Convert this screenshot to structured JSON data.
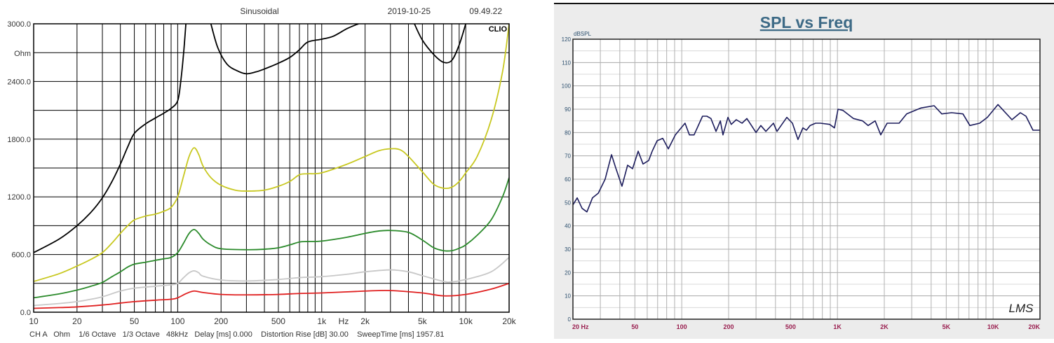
{
  "chart_data": [
    {
      "type": "line",
      "header": {
        "mode": "Sinusoidal",
        "date": "2019-10-25",
        "time": "09.49.22"
      },
      "logo": "CLIO",
      "ylabel": "Ohm",
      "xlabel": "Hz",
      "xscale": "log",
      "xlim": [
        10,
        20000
      ],
      "ylim": [
        0,
        3000
      ],
      "grid": true,
      "ytick_labels": [
        "0.0",
        "600.0",
        "1200.0",
        "1800.0",
        "2400.0",
        "3000.0"
      ],
      "ytick_values": [
        0,
        600,
        1200,
        1800,
        2400,
        3000
      ],
      "xtick_labels": [
        "10",
        "20",
        "50",
        "100",
        "200",
        "500",
        "1k",
        "2k",
        "5k",
        "10k",
        "20k"
      ],
      "xtick_values": [
        10,
        20,
        50,
        100,
        200,
        500,
        1000,
        2000,
        5000,
        10000,
        20000
      ],
      "footer": "CH A   Ohm    1/6 Octave   1/3 Octave   48kHz   Delay [ms] 0.000    Distortion Rise [dB] 30.00    SweepTime [ms] 1957.81",
      "series": [
        {
          "color": "#000000",
          "segments": [
            [
              [
                10,
                620
              ],
              [
                15,
                760
              ],
              [
                20,
                900
              ],
              [
                25,
                1040
              ],
              [
                30,
                1190
              ],
              [
                35,
                1360
              ],
              [
                40,
                1540
              ],
              [
                45,
                1720
              ],
              [
                50,
                1860
              ],
              [
                60,
                1960
              ],
              [
                70,
                2020
              ],
              [
                80,
                2070
              ],
              [
                90,
                2120
              ],
              [
                100,
                2200
              ],
              [
                105,
                2400
              ],
              [
                110,
                2700
              ],
              [
                114,
                3000
              ]
            ],
            [
              [
                170,
                3000
              ],
              [
                190,
                2750
              ],
              [
                220,
                2580
              ],
              [
                260,
                2510
              ],
              [
                300,
                2480
              ],
              [
                350,
                2500
              ],
              [
                400,
                2530
              ],
              [
                500,
                2590
              ],
              [
                600,
                2650
              ],
              [
                700,
                2730
              ],
              [
                800,
                2810
              ],
              [
                1000,
                2840
              ],
              [
                1200,
                2870
              ],
              [
                1500,
                2950
              ],
              [
                1800,
                3000
              ]
            ],
            [
              [
                4400,
                3000
              ],
              [
                5000,
                2830
              ],
              [
                6000,
                2680
              ],
              [
                7000,
                2600
              ],
              [
                8000,
                2620
              ],
              [
                9000,
                2780
              ],
              [
                10000,
                3000
              ]
            ]
          ]
        },
        {
          "color": "#c8c820",
          "segments": [
            [
              [
                10,
                320
              ],
              [
                15,
                400
              ],
              [
                20,
                480
              ],
              [
                25,
                550
              ],
              [
                30,
                620
              ],
              [
                35,
                720
              ],
              [
                40,
                820
              ],
              [
                45,
                900
              ],
              [
                50,
                960
              ],
              [
                60,
                1000
              ],
              [
                70,
                1020
              ],
              [
                80,
                1050
              ],
              [
                90,
                1090
              ],
              [
                100,
                1200
              ],
              [
                110,
                1420
              ],
              [
                120,
                1620
              ],
              [
                130,
                1710
              ],
              [
                140,
                1640
              ],
              [
                150,
                1520
              ],
              [
                170,
                1400
              ],
              [
                200,
                1320
              ],
              [
                250,
                1270
              ],
              [
                300,
                1260
              ],
              [
                400,
                1270
              ],
              [
                500,
                1310
              ],
              [
                600,
                1360
              ],
              [
                700,
                1430
              ],
              [
                800,
                1440
              ],
              [
                1000,
                1450
              ],
              [
                1500,
                1540
              ],
              [
                2000,
                1620
              ],
              [
                2500,
                1680
              ],
              [
                3000,
                1700
              ],
              [
                3500,
                1690
              ],
              [
                4000,
                1620
              ],
              [
                5000,
                1460
              ],
              [
                6000,
                1330
              ],
              [
                7000,
                1290
              ],
              [
                8000,
                1300
              ],
              [
                9000,
                1360
              ],
              [
                10000,
                1450
              ],
              [
                12000,
                1620
              ],
              [
                15000,
                2000
              ],
              [
                18000,
                2500
              ],
              [
                20000,
                3000
              ]
            ]
          ]
        },
        {
          "color": "#2a8a2a",
          "segments": [
            [
              [
                10,
                150
              ],
              [
                15,
                190
              ],
              [
                20,
                230
              ],
              [
                25,
                270
              ],
              [
                30,
                310
              ],
              [
                35,
                370
              ],
              [
                40,
                420
              ],
              [
                45,
                470
              ],
              [
                50,
                500
              ],
              [
                60,
                520
              ],
              [
                70,
                540
              ],
              [
                80,
                555
              ],
              [
                90,
                570
              ],
              [
                100,
                620
              ],
              [
                110,
                720
              ],
              [
                120,
                820
              ],
              [
                130,
                860
              ],
              [
                140,
                820
              ],
              [
                150,
                760
              ],
              [
                170,
                700
              ],
              [
                200,
                660
              ],
              [
                300,
                650
              ],
              [
                400,
                655
              ],
              [
                500,
                670
              ],
              [
                600,
                700
              ],
              [
                700,
                730
              ],
              [
                800,
                735
              ],
              [
                1000,
                740
              ],
              [
                1500,
                780
              ],
              [
                2000,
                820
              ],
              [
                2500,
                845
              ],
              [
                3000,
                850
              ],
              [
                4000,
                830
              ],
              [
                5000,
                750
              ],
              [
                6000,
                670
              ],
              [
                7000,
                640
              ],
              [
                8000,
                640
              ],
              [
                9000,
                665
              ],
              [
                10000,
                700
              ],
              [
                12000,
                800
              ],
              [
                15000,
                960
              ],
              [
                18000,
                1200
              ],
              [
                20000,
                1400
              ]
            ]
          ]
        },
        {
          "color": "#c8c8c8",
          "segments": [
            [
              [
                10,
                70
              ],
              [
                15,
                90
              ],
              [
                20,
                110
              ],
              [
                25,
                135
              ],
              [
                30,
                160
              ],
              [
                40,
                220
              ],
              [
                50,
                250
              ],
              [
                70,
                270
              ],
              [
                90,
                285
              ],
              [
                100,
                300
              ],
              [
                110,
                360
              ],
              [
                120,
                410
              ],
              [
                130,
                430
              ],
              [
                140,
                410
              ],
              [
                150,
                375
              ],
              [
                200,
                335
              ],
              [
                300,
                325
              ],
              [
                500,
                340
              ],
              [
                700,
                360
              ],
              [
                1000,
                370
              ],
              [
                1500,
                395
              ],
              [
                2000,
                420
              ],
              [
                3000,
                440
              ],
              [
                4000,
                420
              ],
              [
                5000,
                380
              ],
              [
                7000,
                320
              ],
              [
                8000,
                315
              ],
              [
                10000,
                340
              ],
              [
                15000,
                420
              ],
              [
                20000,
                570
              ]
            ]
          ]
        },
        {
          "color": "#e02020",
          "segments": [
            [
              [
                10,
                40
              ],
              [
                15,
                48
              ],
              [
                20,
                55
              ],
              [
                30,
                75
              ],
              [
                40,
                95
              ],
              [
                50,
                110
              ],
              [
                70,
                125
              ],
              [
                90,
                135
              ],
              [
                100,
                150
              ],
              [
                115,
                195
              ],
              [
                130,
                220
              ],
              [
                150,
                205
              ],
              [
                200,
                185
              ],
              [
                300,
                180
              ],
              [
                500,
                185
              ],
              [
                700,
                195
              ],
              [
                1000,
                200
              ],
              [
                2000,
                220
              ],
              [
                3000,
                225
              ],
              [
                5000,
                200
              ],
              [
                7000,
                170
              ],
              [
                10000,
                185
              ],
              [
                15000,
                240
              ],
              [
                20000,
                300
              ]
            ]
          ]
        }
      ]
    },
    {
      "type": "line",
      "title": "SPL vs Freq",
      "ylabel": "dBSPL",
      "xscale": "log",
      "xlim": [
        20,
        20000
      ],
      "ylim": [
        0,
        120
      ],
      "grid": true,
      "logo": "LMS",
      "ytick_labels": [
        "0",
        "10",
        "20",
        "30",
        "40",
        "50",
        "60",
        "70",
        "80",
        "90",
        "100",
        "110",
        "120"
      ],
      "ytick_values": [
        0,
        10,
        20,
        30,
        40,
        50,
        60,
        70,
        80,
        90,
        100,
        110,
        120
      ],
      "xtick_labels": [
        "20  Hz",
        "50",
        "100",
        "200",
        "500",
        "1K",
        "2K",
        "5K",
        "10K",
        "20K"
      ],
      "xtick_values": [
        20,
        50,
        100,
        200,
        500,
        1000,
        2000,
        5000,
        10000,
        20000
      ],
      "line_color": "#1c1c5c",
      "x": [
        20,
        21.3,
        22.9,
        24.6,
        26.7,
        29.1,
        32.2,
        35.4,
        37.6,
        41.3,
        44.9,
        48.3,
        52.5,
        56.4,
        61.3,
        64.6,
        69.5,
        75.5,
        82,
        91,
        105,
        112,
        120,
        136,
        145,
        154,
        166,
        177,
        184,
        198,
        208,
        224,
        244,
        262,
        300,
        322,
        347,
        388,
        409,
        473,
        514,
        558,
        600,
        632,
        667,
        724,
        778,
        891,
        957,
        1009,
        1084,
        1268,
        1450,
        1575,
        1747,
        1898,
        2085,
        2490,
        2787,
        3430,
        4180,
        4680,
        5410,
        6400,
        7090,
        8200,
        9190,
        10740,
        13210,
        14960,
        16260,
        18030,
        20000
      ],
      "y": [
        49,
        52,
        47.5,
        46,
        52,
        54,
        60,
        70.5,
        65,
        57,
        66,
        64.5,
        72,
        66.5,
        68,
        72,
        76.5,
        77.5,
        73,
        79,
        84,
        79,
        79,
        87,
        87,
        86,
        80.5,
        85,
        79,
        86.5,
        83.5,
        85.5,
        84,
        86,
        80,
        83,
        80.5,
        84,
        80.5,
        86.5,
        84,
        77,
        82,
        81,
        83,
        84,
        84,
        83.5,
        82,
        90,
        89.5,
        86,
        85,
        83,
        85,
        79,
        84,
        84,
        88,
        90.5,
        91.5,
        88,
        88.5,
        88,
        83,
        84,
        86.5,
        92,
        85.5,
        88.5,
        87,
        81,
        81
      ]
    }
  ]
}
